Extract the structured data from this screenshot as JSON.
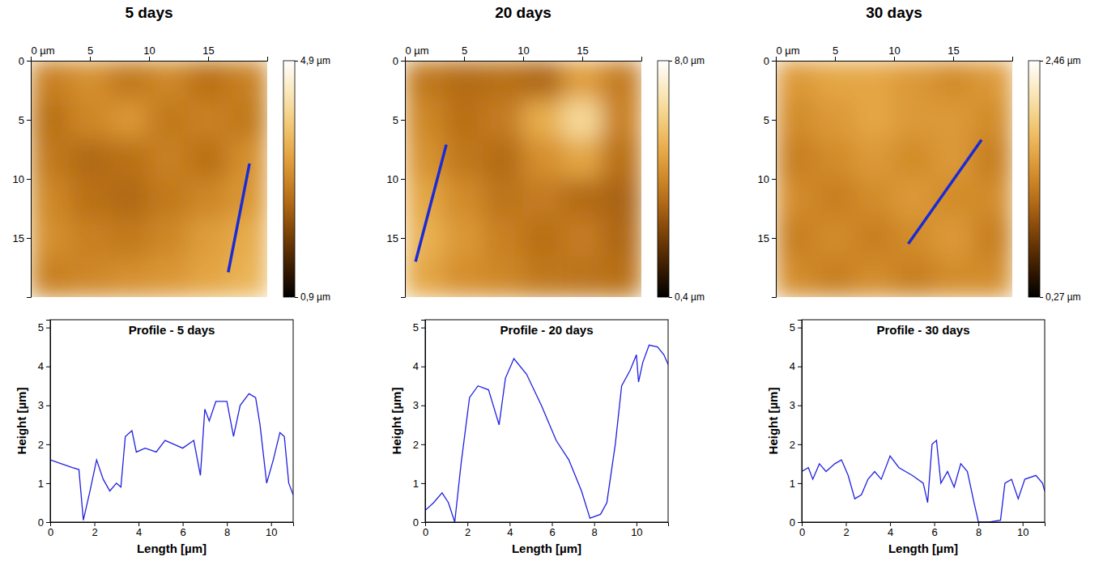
{
  "chart_data": [
    {
      "type": "heatmap",
      "title": "5 days",
      "xlim": [
        0,
        20
      ],
      "ylim": [
        0,
        20
      ],
      "xticks": [
        {
          "value": 0,
          "label": "0 µm"
        },
        5,
        10,
        15
      ],
      "yticks": [
        0,
        5,
        10,
        15
      ],
      "values": [
        [
          2.8,
          3.0,
          2.7,
          2.9,
          2.6,
          2.8
        ],
        [
          2.6,
          2.9,
          3.1,
          2.7,
          2.8,
          2.7
        ],
        [
          2.7,
          2.5,
          2.6,
          2.8,
          2.6,
          3.0
        ],
        [
          2.9,
          2.6,
          2.5,
          2.7,
          2.9,
          3.1
        ],
        [
          3.0,
          2.8,
          2.7,
          2.9,
          3.2,
          3.4
        ],
        [
          2.8,
          2.9,
          3.0,
          3.1,
          3.3,
          3.5
        ]
      ],
      "colorbar": {
        "range": [
          0.9,
          4.9
        ],
        "ticks": [
          {
            "value": 0.9,
            "label": "0,9 µm"
          },
          {
            "value": 4.9,
            "label": "4,9 µm"
          }
        ]
      },
      "profile_line": {
        "x": [
          18.5,
          16.7
        ],
        "y": [
          8.7,
          17.9
        ]
      },
      "color": "#1a2bd6"
    },
    {
      "type": "heatmap",
      "title": "20 days",
      "xlim": [
        0,
        20
      ],
      "ylim": [
        0,
        20
      ],
      "xticks": [
        {
          "value": 0,
          "label": "0 µm"
        },
        5,
        10,
        15
      ],
      "yticks": [
        0,
        5,
        10,
        15
      ],
      "values": [
        [
          3.8,
          3.5,
          3.6,
          3.4,
          4.8,
          3.9
        ],
        [
          4.2,
          3.6,
          3.9,
          5.2,
          6.5,
          4.0
        ],
        [
          4.5,
          3.8,
          3.5,
          4.4,
          5.0,
          3.6
        ],
        [
          5.0,
          4.3,
          3.7,
          3.9,
          3.5,
          3.3
        ],
        [
          5.3,
          4.6,
          4.0,
          3.6,
          3.9,
          3.4
        ],
        [
          5.0,
          4.4,
          4.2,
          3.8,
          3.7,
          3.6
        ]
      ],
      "colorbar": {
        "range": [
          0.4,
          8.0
        ],
        "ticks": [
          {
            "value": 0.4,
            "label": "0,4 µm"
          },
          {
            "value": 8.0,
            "label": "8,0 µm"
          }
        ]
      },
      "profile_line": {
        "x": [
          3.5,
          0.9
        ],
        "y": [
          7.1,
          17.0
        ]
      },
      "color": "#1a2bd6"
    },
    {
      "type": "heatmap",
      "title": "30 days",
      "xlim": [
        0,
        20
      ],
      "ylim": [
        0,
        20
      ],
      "xticks": [
        {
          "value": 0,
          "label": "0 µm"
        },
        5,
        10,
        15
      ],
      "yticks": [
        0,
        5,
        10,
        15
      ],
      "values": [
        [
          1.5,
          1.6,
          1.6,
          1.5,
          1.4,
          1.5
        ],
        [
          1.4,
          1.5,
          1.6,
          1.5,
          1.5,
          1.4
        ],
        [
          1.3,
          1.4,
          1.5,
          1.4,
          1.5,
          1.3
        ],
        [
          1.4,
          1.3,
          1.4,
          1.5,
          1.4,
          1.4
        ],
        [
          1.3,
          1.4,
          1.3,
          1.4,
          1.5,
          1.3
        ],
        [
          1.4,
          1.3,
          1.4,
          1.3,
          1.4,
          1.4
        ]
      ],
      "colorbar": {
        "range": [
          0.27,
          2.46
        ],
        "ticks": [
          {
            "value": 0.27,
            "label": "0,27 µm"
          },
          {
            "value": 2.46,
            "label": "2,46 µm"
          }
        ]
      },
      "profile_line": {
        "x": [
          17.4,
          11.2
        ],
        "y": [
          6.7,
          15.5
        ]
      },
      "color": "#1a2bd6"
    },
    {
      "type": "line",
      "title": "Profile - 5 days",
      "x_label": "Length [µm]",
      "y_label": "Height [µm]",
      "xlim": [
        0,
        11
      ],
      "ylim": [
        0,
        5.2
      ],
      "xticks": [
        0,
        2,
        4,
        6,
        8,
        10
      ],
      "yticks": [
        0,
        1,
        2,
        3,
        4,
        5
      ],
      "x": [
        0,
        0.5,
        1.0,
        1.3,
        1.5,
        1.8,
        2.1,
        2.4,
        2.7,
        3.0,
        3.2,
        3.4,
        3.7,
        3.9,
        4.3,
        4.8,
        5.2,
        5.6,
        6.0,
        6.5,
        6.8,
        7.0,
        7.2,
        7.5,
        8.0,
        8.3,
        8.6,
        9.0,
        9.3,
        9.5,
        9.8,
        10.1,
        10.4,
        10.6,
        10.8,
        11.0
      ],
      "values": [
        1.6,
        1.5,
        1.4,
        1.35,
        0.05,
        0.8,
        1.6,
        1.1,
        0.8,
        1.0,
        0.9,
        2.2,
        2.35,
        1.8,
        1.9,
        1.8,
        2.1,
        2.0,
        1.9,
        2.1,
        1.2,
        2.9,
        2.6,
        3.1,
        3.1,
        2.2,
        3.0,
        3.3,
        3.2,
        2.5,
        1.0,
        1.6,
        2.3,
        2.2,
        1.0,
        0.7
      ],
      "color": "#2020e0"
    },
    {
      "type": "line",
      "title": "Profile - 20 days",
      "x_label": "Length [µm]",
      "y_label": "Height [µm]",
      "xlim": [
        0,
        11.5
      ],
      "ylim": [
        0,
        5.2
      ],
      "xticks": [
        0,
        2,
        4,
        6,
        8,
        10
      ],
      "yticks": [
        0,
        1,
        2,
        3,
        4,
        5
      ],
      "x": [
        0,
        0.4,
        0.8,
        1.1,
        1.4,
        1.7,
        2.1,
        2.5,
        3.0,
        3.5,
        3.8,
        4.2,
        4.8,
        5.5,
        6.2,
        6.8,
        7.4,
        7.8,
        8.3,
        8.6,
        9.0,
        9.3,
        9.7,
        10.0,
        10.1,
        10.3,
        10.6,
        11.0,
        11.3,
        11.5
      ],
      "values": [
        0.3,
        0.5,
        0.75,
        0.5,
        0.0,
        1.5,
        3.2,
        3.5,
        3.4,
        2.5,
        3.7,
        4.2,
        3.8,
        3.0,
        2.1,
        1.6,
        0.8,
        0.1,
        0.2,
        0.5,
        2.0,
        3.5,
        3.9,
        4.3,
        3.6,
        4.1,
        4.55,
        4.5,
        4.3,
        4.05
      ],
      "color": "#2020e0"
    },
    {
      "type": "line",
      "title": "Profile - 30 days",
      "x_label": "Length [µm]",
      "y_label": "Height [µm]",
      "xlim": [
        0,
        11
      ],
      "ylim": [
        0,
        5.2
      ],
      "xticks": [
        0,
        2,
        4,
        6,
        8,
        10
      ],
      "yticks": [
        0,
        1,
        2,
        3,
        4,
        5
      ],
      "x": [
        0,
        0.3,
        0.5,
        0.8,
        1.1,
        1.5,
        1.8,
        2.1,
        2.4,
        2.7,
        3.0,
        3.3,
        3.6,
        4.0,
        4.4,
        5.0,
        5.5,
        5.7,
        5.9,
        6.1,
        6.3,
        6.6,
        6.9,
        7.2,
        7.5,
        7.8,
        8.0,
        8.5,
        9.0,
        9.2,
        9.5,
        9.8,
        10.1,
        10.6,
        10.9,
        11.0
      ],
      "values": [
        1.3,
        1.4,
        1.1,
        1.5,
        1.3,
        1.5,
        1.6,
        1.2,
        0.6,
        0.7,
        1.1,
        1.3,
        1.1,
        1.7,
        1.4,
        1.2,
        1.0,
        0.5,
        2.0,
        2.1,
        1.0,
        1.3,
        0.9,
        1.5,
        1.3,
        0.5,
        0.0,
        0.0,
        0.05,
        1.0,
        1.1,
        0.6,
        1.1,
        1.2,
        1.0,
        0.8
      ],
      "color": "#2020e0"
    }
  ]
}
